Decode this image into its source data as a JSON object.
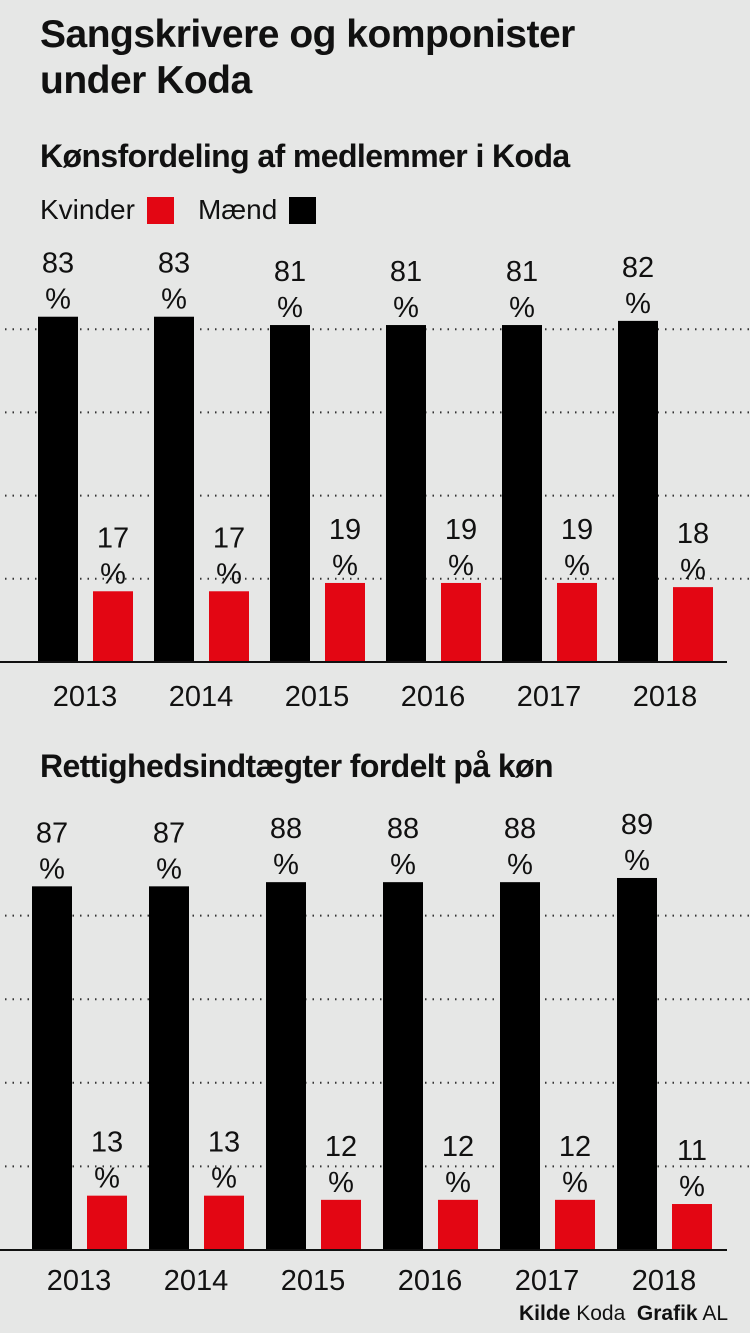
{
  "title_line1": "Sangskrivere og komponister",
  "title_line2": "under Koda",
  "legend": {
    "women": "Kvinder",
    "men": "Mænd"
  },
  "colors": {
    "women": "#e30613",
    "men": "#000000",
    "background": "#e6e7e6"
  },
  "footer": {
    "source_label": "Kilde",
    "source": "Koda",
    "graphic_label": "Grafik",
    "graphic": "AL"
  },
  "chart_data": [
    {
      "type": "bar",
      "title": "Kønsfordeling af medlemmer i Koda",
      "categories": [
        "2013",
        "2014",
        "2015",
        "2016",
        "2017",
        "2018"
      ],
      "series": [
        {
          "name": "Mænd",
          "values": [
            83,
            83,
            81,
            81,
            81,
            82
          ]
        },
        {
          "name": "Kvinder",
          "values": [
            17,
            17,
            19,
            19,
            19,
            18
          ]
        }
      ],
      "unit": "%",
      "ylim": [
        0,
        100
      ],
      "grid": true
    },
    {
      "type": "bar",
      "title": "Rettighedsindtægter fordelt på køn",
      "categories": [
        "2013",
        "2014",
        "2015",
        "2016",
        "2017",
        "2018"
      ],
      "series": [
        {
          "name": "Mænd",
          "values": [
            87,
            87,
            88,
            88,
            88,
            89
          ]
        },
        {
          "name": "Kvinder",
          "values": [
            13,
            13,
            12,
            12,
            12,
            11
          ]
        }
      ],
      "unit": "%",
      "ylim": [
        0,
        100
      ],
      "grid": true
    }
  ]
}
